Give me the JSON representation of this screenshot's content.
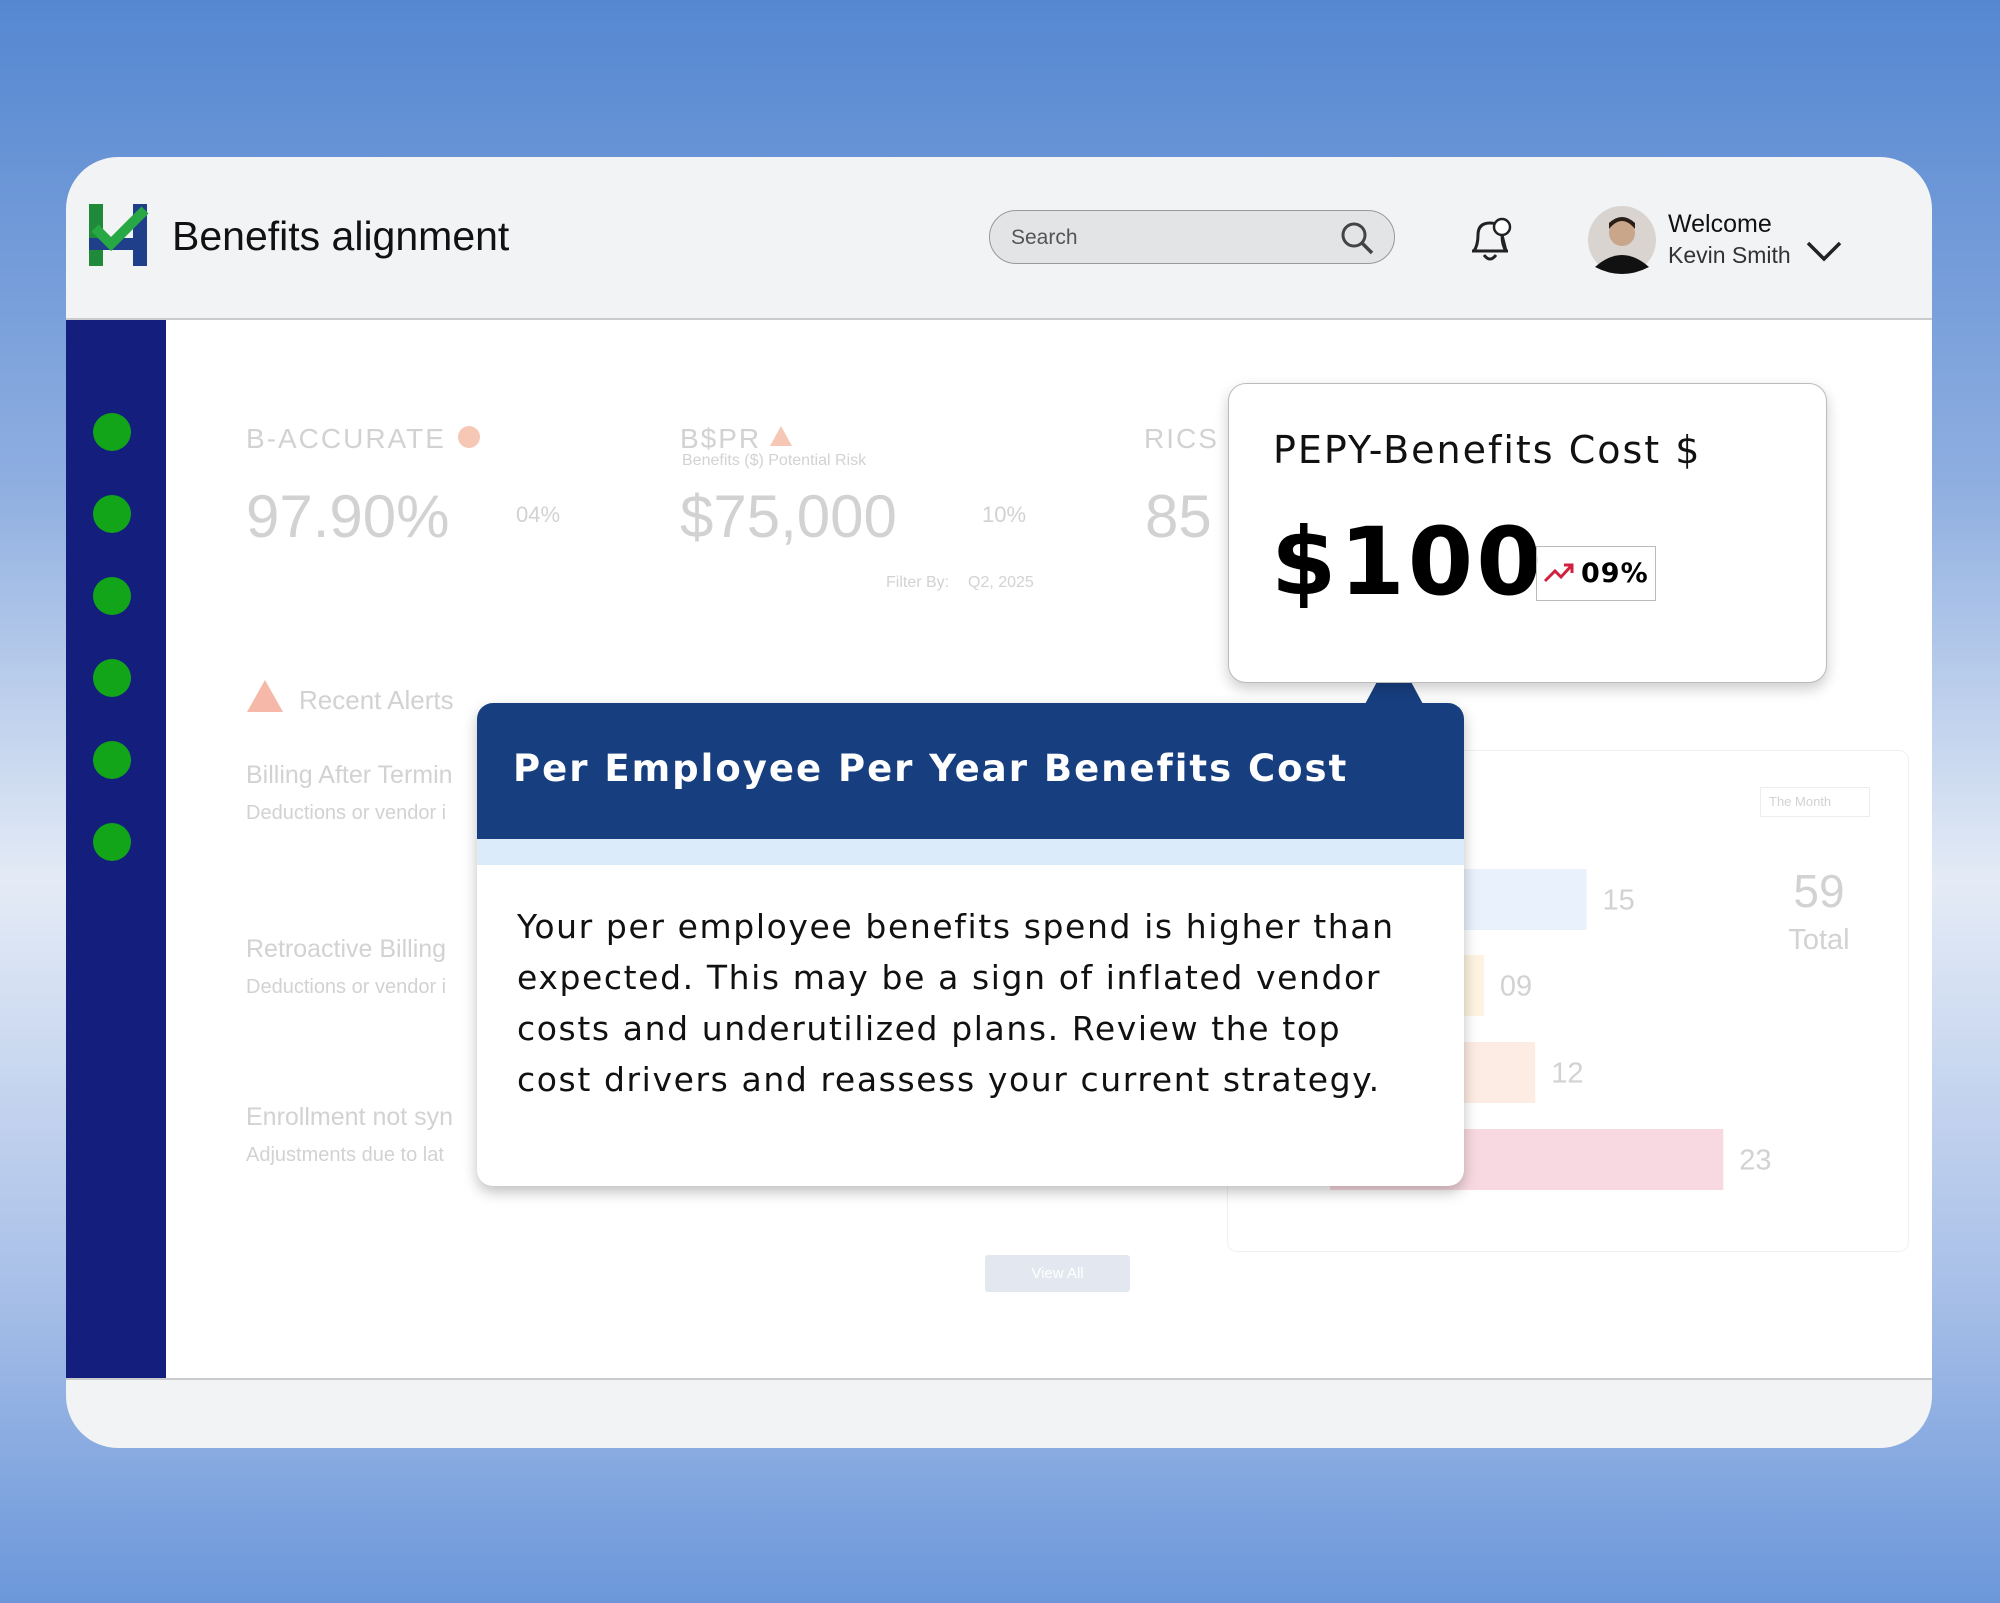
{
  "header": {
    "title": "Benefits alignment",
    "search_placeholder": "Search",
    "welcome": "Welcome",
    "user_name": "Kevin Smith"
  },
  "metrics": [
    {
      "label": "B-ACCURATE",
      "value": "97.90%",
      "change": "04%"
    },
    {
      "label": "B$PR",
      "subtitle": "Benefits ($) Potential Risk",
      "value": "$75,000",
      "change": "10%"
    },
    {
      "label": "RICS",
      "value": "85"
    }
  ],
  "filter": {
    "label": "Filter By:",
    "value": "Q2, 2025"
  },
  "alerts": {
    "title": "Recent Alerts",
    "items": [
      {
        "title": "Billing After Termin",
        "subtitle": "Deductions or vendor i"
      },
      {
        "title": "Retroactive Billing",
        "subtitle": "Deductions or vendor i"
      },
      {
        "title": "Enrollment not syn",
        "subtitle": "Adjustments due to lat"
      }
    ]
  },
  "view_all": "View All",
  "chart_data": {
    "type": "bar",
    "orientation": "horizontal",
    "period": "The Month",
    "values": [
      15,
      9,
      12,
      23
    ],
    "value_labels": [
      "15",
      "09",
      "12",
      "23"
    ],
    "colors": [
      "#e8f1fc",
      "#fdf3e0",
      "#fdece3",
      "#f9d9e1"
    ],
    "total": 59,
    "total_label": "Total"
  },
  "popup": {
    "title": "PEPY-Benefits Cost $",
    "value": "$100",
    "change": "09%"
  },
  "tooltip": {
    "title": "Per Employee Per Year Benefits Cost",
    "body": "Your per employee benefits spend is higher than expected. This may be a sign of inflated vendor costs and underutilized plans. Review the top cost drivers and reassess your current strategy."
  }
}
